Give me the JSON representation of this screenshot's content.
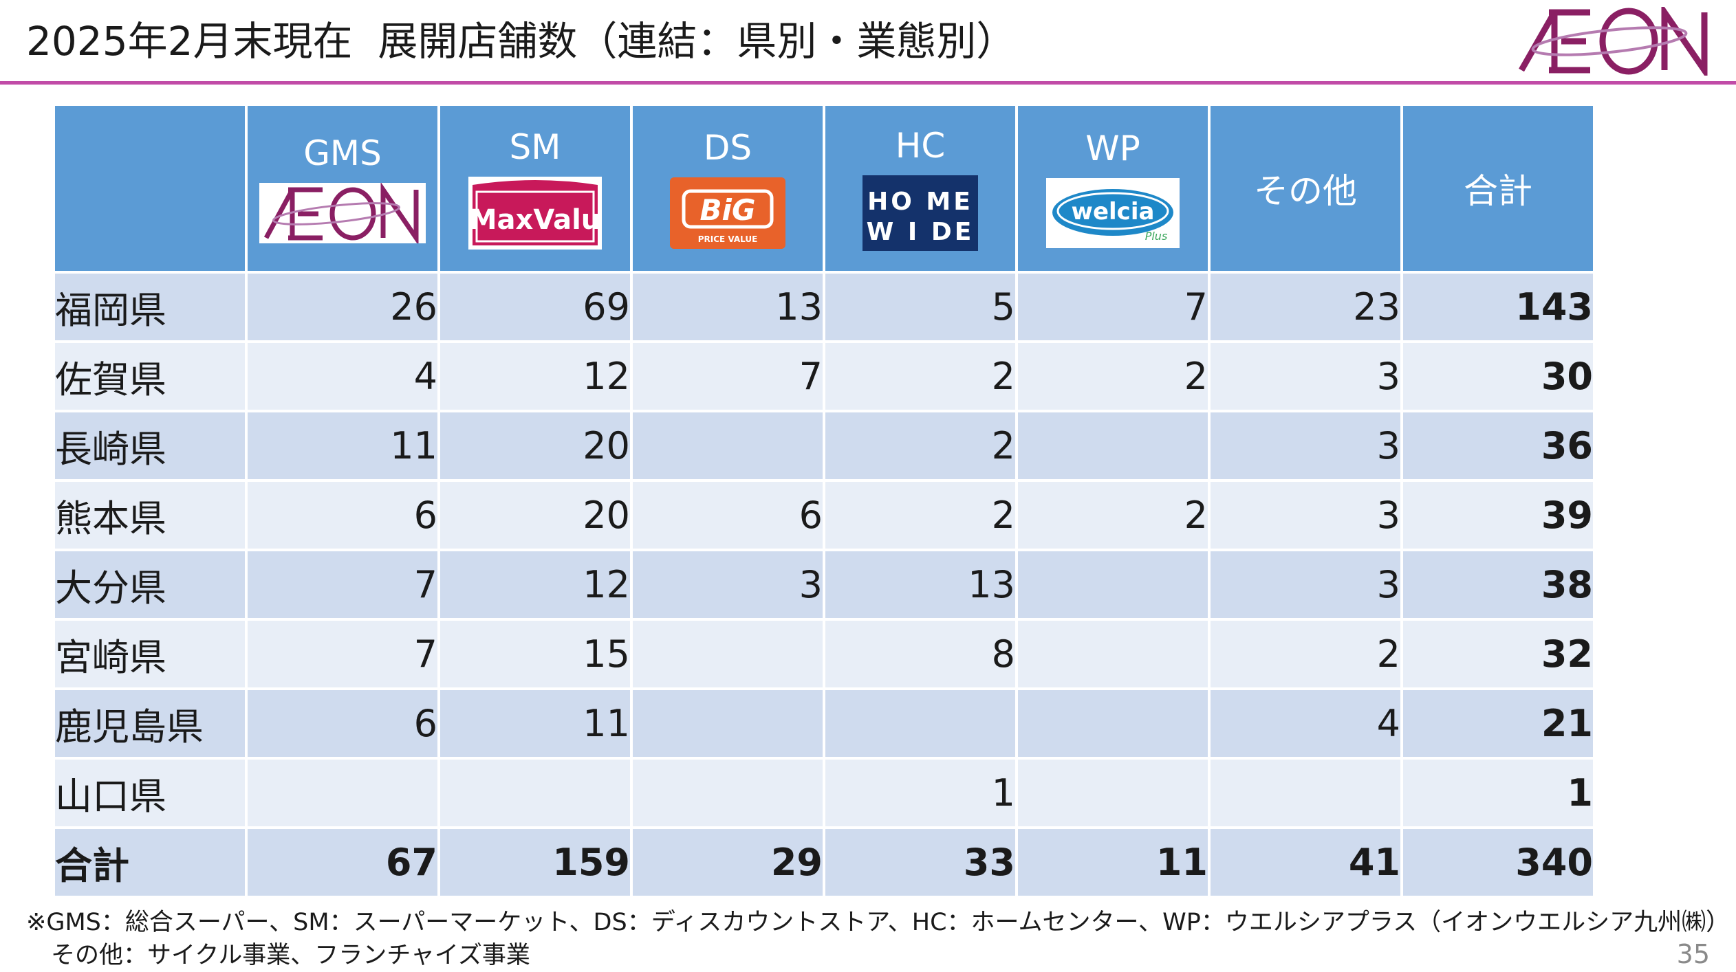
{
  "slide": {
    "title": "2025年2月末現在  展開店舗数（連結：県別・業態別）",
    "brand_logo_text": "ÆON",
    "accent_color": "#c14ba7",
    "page_number": "35"
  },
  "table": {
    "header_color": "#5b9bd5",
    "columns": [
      {
        "code": "GMS",
        "logo": "aeon-logo",
        "logo_text": "ÆON"
      },
      {
        "code": "SM",
        "logo": "maxvalu-logo",
        "logo_text": "MaxValu"
      },
      {
        "code": "DS",
        "logo": "big-logo",
        "logo_text": "BiG",
        "logo_subtext": "PRICE VALUE"
      },
      {
        "code": "HC",
        "logo": "homewide-logo",
        "logo_text": "HOME WIDE"
      },
      {
        "code": "WP",
        "logo": "welcia-logo",
        "logo_text": "welcia",
        "logo_subtext": "Plus"
      },
      {
        "code": "その他",
        "logo": null
      },
      {
        "code": "合計",
        "logo": null
      }
    ],
    "rows": [
      {
        "pref": "福岡県",
        "values": [
          "26",
          "69",
          "13",
          "5",
          "7",
          "23"
        ],
        "total": "143"
      },
      {
        "pref": "佐賀県",
        "values": [
          "4",
          "12",
          "7",
          "2",
          "2",
          "3"
        ],
        "total": "30"
      },
      {
        "pref": "長崎県",
        "values": [
          "11",
          "20",
          "",
          "2",
          "",
          "3"
        ],
        "total": "36"
      },
      {
        "pref": "熊本県",
        "values": [
          "6",
          "20",
          "6",
          "2",
          "2",
          "3"
        ],
        "total": "39"
      },
      {
        "pref": "大分県",
        "values": [
          "7",
          "12",
          "3",
          "13",
          "",
          "3"
        ],
        "total": "38"
      },
      {
        "pref": "宮崎県",
        "values": [
          "7",
          "15",
          "",
          "8",
          "",
          "2"
        ],
        "total": "32"
      },
      {
        "pref": "鹿児島県",
        "values": [
          "6",
          "11",
          "",
          "",
          "",
          "4"
        ],
        "total": "21"
      },
      {
        "pref": "山口県",
        "values": [
          "",
          "",
          "",
          "1",
          "",
          ""
        ],
        "total": "1"
      }
    ],
    "total_row": {
      "pref": "合計",
      "values": [
        "67",
        "159",
        "29",
        "33",
        "11",
        "41"
      ],
      "total": "340"
    }
  },
  "footnote": {
    "line1": "※GMS：総合スーパー、SM：スーパーマーケット、DS：ディスカウントストア、HC：ホームセンター、WP：ウエルシアプラス（イオンウエルシア九州㈱）",
    "line2": "その他：サイクル事業、フランチャイズ事業"
  }
}
